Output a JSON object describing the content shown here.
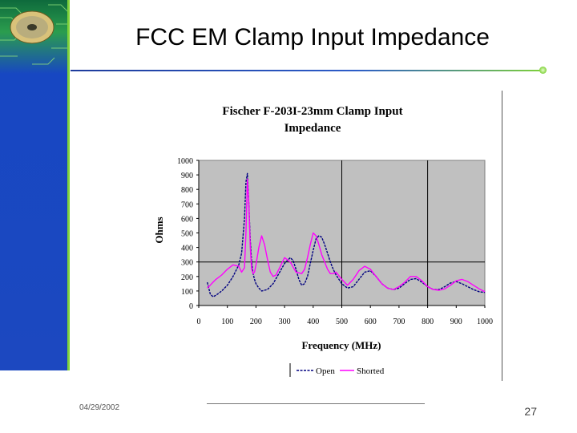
{
  "slide": {
    "title": "FCC EM Clamp Input Impedance",
    "date": "04/29/2002",
    "page_number": "27"
  },
  "colors": {
    "sidebar_blue": "#1c48c0",
    "accent_green": "#7fd23a",
    "plot_bg": "#c0c0c0",
    "open_series": "#000080",
    "shorted_series": "#ff00ff"
  },
  "chart_data": {
    "type": "line",
    "title": "Fischer F-203I-23mm Clamp Input Impedance",
    "xlabel": "Frequency (MHz)",
    "ylabel": "Ohms",
    "xlim": [
      0,
      1000
    ],
    "ylim": [
      0,
      1000
    ],
    "x_ticks": [
      "0",
      "100",
      "200",
      "300",
      "400",
      "500",
      "600",
      "700",
      "800",
      "900",
      "1000"
    ],
    "y_ticks": [
      "0",
      "100",
      "200",
      "300",
      "400",
      "500",
      "600",
      "700",
      "800",
      "900",
      "1000"
    ],
    "grid": "major gridlines at x=500, 800 and y=300",
    "legend": "bottom-center",
    "series": [
      {
        "name": "Open",
        "color": "#000080",
        "x": [
          30,
          40,
          50,
          60,
          80,
          100,
          120,
          140,
          150,
          160,
          165,
          170,
          175,
          180,
          185,
          190,
          195,
          200,
          210,
          220,
          240,
          260,
          280,
          300,
          320,
          330,
          340,
          350,
          360,
          370,
          380,
          390,
          400,
          410,
          420,
          430,
          440,
          450,
          460,
          470,
          480,
          500,
          520,
          540,
          560,
          580,
          600,
          620,
          640,
          660,
          680,
          700,
          720,
          740,
          760,
          780,
          800,
          820,
          840,
          860,
          880,
          900,
          920,
          940,
          960,
          980,
          1000
        ],
        "y": [
          160,
          80,
          60,
          70,
          100,
          140,
          200,
          280,
          360,
          600,
          850,
          910,
          700,
          450,
          300,
          220,
          180,
          150,
          120,
          100,
          110,
          150,
          220,
          290,
          330,
          310,
          250,
          180,
          140,
          150,
          200,
          290,
          380,
          460,
          480,
          470,
          420,
          360,
          300,
          250,
          210,
          150,
          120,
          130,
          180,
          230,
          240,
          200,
          150,
          120,
          110,
          120,
          150,
          180,
          185,
          160,
          130,
          110,
          110,
          130,
          155,
          165,
          150,
          130,
          110,
          95,
          90
        ]
      },
      {
        "name": "Shorted",
        "color": "#ff00ff",
        "x": [
          30,
          40,
          50,
          60,
          80,
          100,
          120,
          140,
          150,
          160,
          165,
          170,
          175,
          180,
          185,
          190,
          195,
          200,
          210,
          220,
          230,
          240,
          250,
          260,
          270,
          280,
          300,
          320,
          340,
          360,
          370,
          380,
          390,
          400,
          410,
          420,
          430,
          440,
          450,
          460,
          470,
          480,
          500,
          520,
          540,
          560,
          580,
          600,
          620,
          640,
          660,
          680,
          700,
          720,
          740,
          760,
          780,
          800,
          820,
          840,
          860,
          880,
          900,
          920,
          940,
          960,
          980,
          1000
        ],
        "y": [
          120,
          140,
          160,
          180,
          210,
          250,
          280,
          270,
          230,
          260,
          500,
          870,
          700,
          400,
          250,
          220,
          230,
          280,
          400,
          480,
          420,
          320,
          230,
          200,
          210,
          250,
          330,
          300,
          230,
          220,
          250,
          330,
          420,
          500,
          480,
          420,
          350,
          300,
          250,
          220,
          220,
          230,
          180,
          140,
          180,
          240,
          270,
          250,
          200,
          150,
          120,
          110,
          130,
          160,
          200,
          200,
          170,
          130,
          110,
          105,
          115,
          140,
          170,
          180,
          165,
          140,
          115,
          95
        ]
      }
    ]
  }
}
